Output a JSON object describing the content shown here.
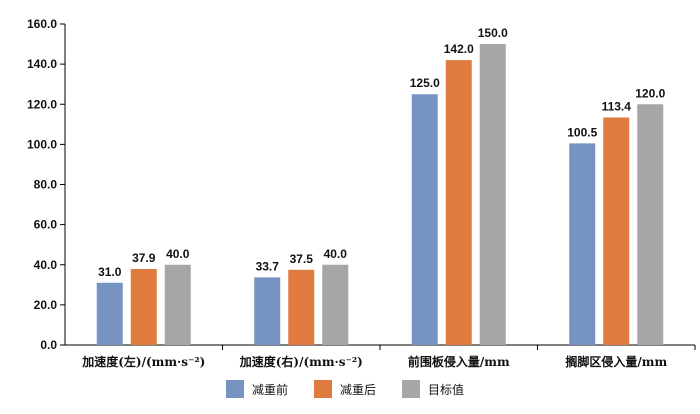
{
  "chart_data": {
    "type": "bar",
    "categories": [
      "加速度(左)/(mm·s⁻²)",
      "加速度(右)/(mm·s⁻²)",
      "前围板侵入量/mm",
      "搁脚区侵入量/mm"
    ],
    "series": [
      {
        "name": "减重前",
        "values": [
          31.0,
          33.7,
          125.0,
          100.5
        ],
        "color": "#7693c1",
        "labels": [
          "31.0",
          "33.7",
          "125.0",
          "100.5"
        ]
      },
      {
        "name": "减重后",
        "values": [
          37.9,
          37.5,
          142.0,
          113.4
        ],
        "color": "#e07b3f",
        "labels": [
          "37.9",
          "37.5",
          "142.0",
          "113.4"
        ]
      },
      {
        "name": "目标值",
        "values": [
          40.0,
          40.0,
          150.0,
          120.0
        ],
        "color": "#a6a6a6",
        "labels": [
          "40.0",
          "40.0",
          "150.0",
          "120.0"
        ]
      }
    ],
    "ylim": [
      0,
      160
    ],
    "yticks": [
      "0.0",
      "20.0",
      "40.0",
      "60.0",
      "80.0",
      "100.0",
      "120.0",
      "140.0",
      "160.0"
    ],
    "ytick_values": [
      0,
      20,
      40,
      60,
      80,
      100,
      120,
      140,
      160
    ],
    "grid": false,
    "legend_position": "bottom",
    "axis_color": "#000000"
  }
}
